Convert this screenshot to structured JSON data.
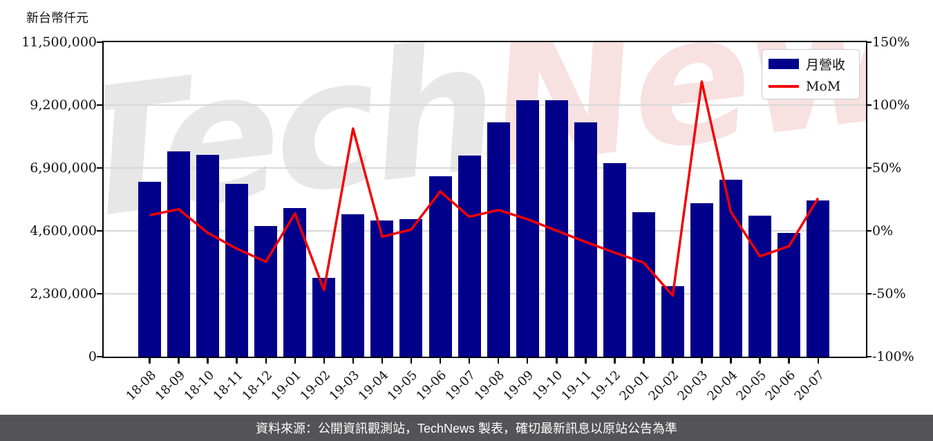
{
  "left_axis_title": "新台幣仟元",
  "legend": {
    "bar_label": "月營收",
    "line_label": "MoM"
  },
  "watermark": {
    "part1": "Tech",
    "part2": "News",
    "part1_color": "#e7e7e7",
    "part2_color": "#f8e1e1"
  },
  "footer": {
    "text": "資料來源：公開資訊觀測站，TechNews 製表，確切最新訊息以原站公告為準",
    "background": "#545456",
    "text_color": "#ffffff"
  },
  "colors": {
    "bar": "#00008b",
    "line": "#f20000",
    "grid": "#d8d8d8",
    "axis": "#000000",
    "tick_text": "#111111"
  },
  "chart_data": {
    "type": "bar",
    "title": "",
    "categories": [
      "18-08",
      "18-09",
      "18-10",
      "18-11",
      "18-12",
      "19-01",
      "19-02",
      "19-03",
      "19-04",
      "19-05",
      "19-06",
      "19-07",
      "19-08",
      "19-09",
      "19-10",
      "19-11",
      "19-12",
      "20-01",
      "20-02",
      "20-03",
      "20-04",
      "20-05",
      "20-06",
      "20-07"
    ],
    "series": [
      {
        "name": "月營收",
        "type": "bar",
        "axis": "left",
        "unit": "新台幣仟元",
        "values": [
          6400000,
          7500000,
          7380000,
          6330000,
          4780000,
          5440000,
          2880000,
          5220000,
          4980000,
          5030000,
          6610000,
          7350000,
          8570000,
          9370000,
          9390000,
          8560000,
          7080000,
          5290000,
          2570000,
          5620000,
          6470000,
          5160000,
          4530000,
          5710000
        ]
      },
      {
        "name": "MoM",
        "type": "line",
        "axis": "right",
        "unit": "%",
        "values": [
          12.5,
          17.2,
          -1.6,
          -14.2,
          -24.5,
          13.8,
          -47.1,
          81.3,
          -4.6,
          1.0,
          31.4,
          11.2,
          16.6,
          9.3,
          0.2,
          -8.8,
          -17.3,
          -25.3,
          -51.4,
          118.7,
          15.1,
          -20.2,
          -12.2,
          26.0
        ]
      }
    ],
    "left_axis": {
      "title": "新台幣仟元",
      "tick_values": [
        0,
        2300000,
        4600000,
        6900000,
        9200000,
        11500000
      ],
      "range": [
        0,
        11500000
      ]
    },
    "right_axis": {
      "tick_values_pct": [
        -100,
        -50,
        0,
        50,
        100,
        150
      ],
      "range": [
        -100,
        150
      ]
    },
    "gridline_values_left": [
      2300000,
      4600000,
      6900000,
      9200000
    ],
    "grid": true,
    "legend_position": "top-right"
  }
}
